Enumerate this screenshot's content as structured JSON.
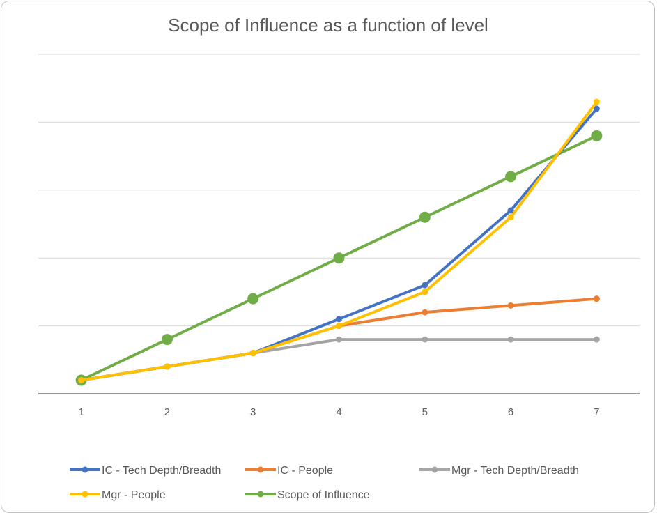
{
  "chart_data": {
    "type": "line",
    "title": "Scope of Influence as a function of level",
    "xlabel": "",
    "ylabel": "",
    "x": [
      "1",
      "2",
      "3",
      "4",
      "5",
      "6",
      "7"
    ],
    "ylim": [
      0,
      25
    ],
    "y_gridlines": [
      5,
      10,
      15,
      20,
      25
    ],
    "y_tick_labels_shown": false,
    "grid": true,
    "legend_position": "bottom",
    "series": [
      {
        "name": "IC - Tech Depth/Breadth",
        "color": "#4472C4",
        "marker": "small",
        "values": [
          1,
          2,
          3,
          5.5,
          8,
          13.5,
          21
        ]
      },
      {
        "name": "IC - People",
        "color": "#ED7D31",
        "marker": "small",
        "values": [
          1,
          2,
          3,
          5,
          6,
          6.5,
          7
        ]
      },
      {
        "name": "Mgr - Tech Depth/Breadth",
        "color": "#A5A5A5",
        "marker": "small",
        "values": [
          1,
          2,
          3,
          4,
          4,
          4,
          4
        ]
      },
      {
        "name": "Mgr - People",
        "color": "#FFC000",
        "marker": "small",
        "values": [
          1,
          2,
          3,
          5,
          7.5,
          13,
          21.5
        ]
      },
      {
        "name": "Scope of Influence",
        "color": "#70AD47",
        "marker": "large",
        "values": [
          1,
          4,
          7,
          10,
          13,
          16,
          19
        ]
      }
    ]
  }
}
